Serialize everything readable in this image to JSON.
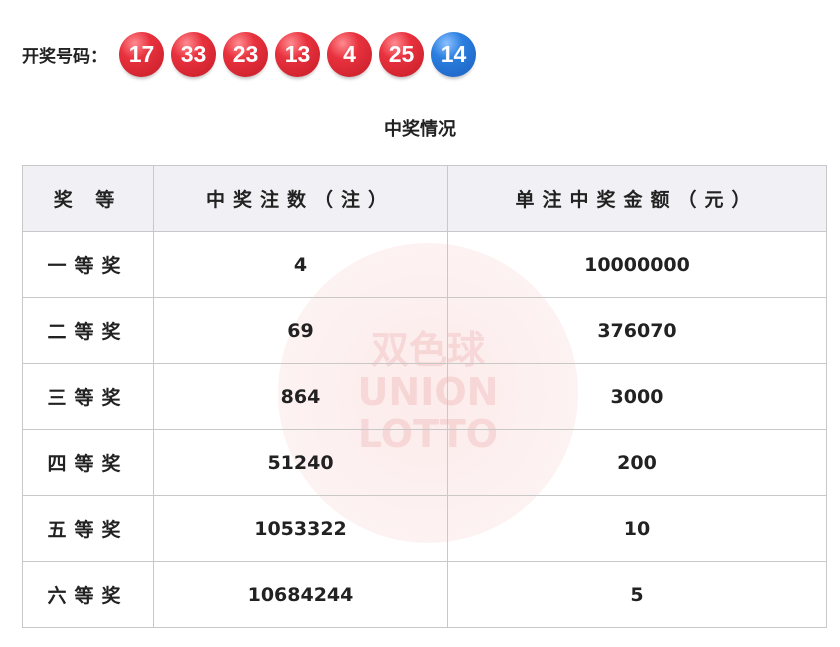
{
  "draw": {
    "label": "开奖号码：",
    "red_balls": [
      "17",
      "33",
      "23",
      "13",
      "4",
      "25"
    ],
    "blue_ball": "14",
    "colors": {
      "red": "#e8323e",
      "blue": "#2b7fe0"
    }
  },
  "title": "中奖情况",
  "table": {
    "headers": [
      "奖 等",
      "中奖注数（注）",
      "单注中奖金额（元）"
    ],
    "rows": [
      {
        "level": "一等奖",
        "count": "4",
        "amount": "10000000"
      },
      {
        "level": "二等奖",
        "count": "69",
        "amount": "376070"
      },
      {
        "level": "三等奖",
        "count": "864",
        "amount": "3000"
      },
      {
        "level": "四等奖",
        "count": "51240",
        "amount": "200"
      },
      {
        "level": "五等奖",
        "count": "1053322",
        "amount": "10"
      },
      {
        "level": "六等奖",
        "count": "10684244",
        "amount": "5"
      }
    ]
  },
  "watermark": {
    "line1": "双色球",
    "line2": "UNION",
    "line3": "LOTTO"
  }
}
